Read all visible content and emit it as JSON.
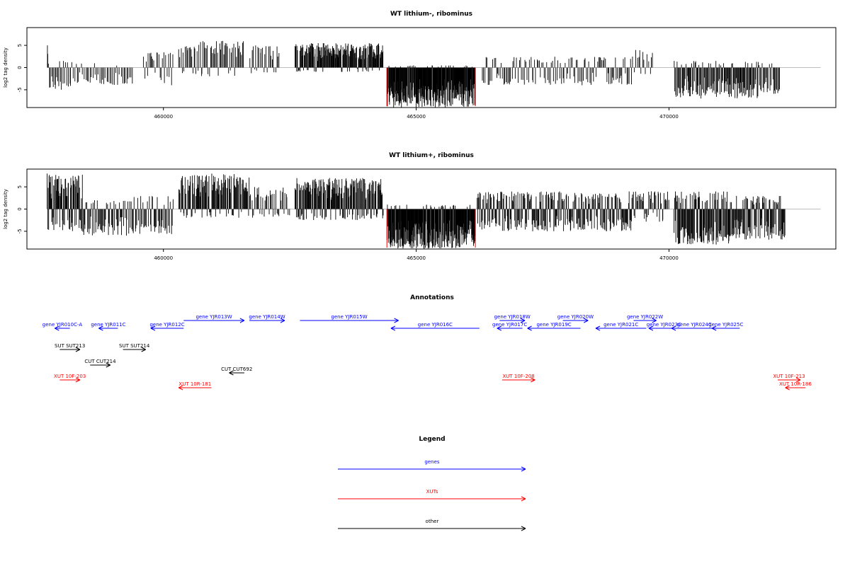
{
  "chart_data": [
    {
      "type": "bar",
      "title": "WT lithium-, ribominus",
      "ylabel": "log2 tag density",
      "xlabel": "",
      "xlim": [
        457300,
        473300
      ],
      "ylim": [
        -9,
        9
      ],
      "x_ticks": [
        460000,
        465000,
        470000
      ],
      "x_tick_labels": [
        "460000",
        "465000",
        "470000"
      ],
      "y_ticks": [
        -5,
        0,
        5
      ],
      "y_tick_labels": [
        "-5",
        "0",
        "5"
      ],
      "marker_lines_x": [
        464420,
        466170
      ],
      "segments": [
        {
          "x_start": 457700,
          "x_end": 457720,
          "pos_max": 5,
          "neg_max": -1,
          "density": 0.3
        },
        {
          "x_start": 457720,
          "x_end": 458200,
          "pos_max": 1.5,
          "neg_max": -5,
          "density": 0.35
        },
        {
          "x_start": 458200,
          "x_end": 459400,
          "pos_max": 1,
          "neg_max": -4,
          "density": 0.25
        },
        {
          "x_start": 459600,
          "x_end": 460200,
          "pos_max": 3.5,
          "neg_max": -4,
          "density": 0.3
        },
        {
          "x_start": 460300,
          "x_end": 461600,
          "pos_max": 6,
          "neg_max": -2,
          "density": 0.35
        },
        {
          "x_start": 461700,
          "x_end": 462300,
          "pos_max": 5,
          "neg_max": -1.5,
          "density": 0.3
        },
        {
          "x_start": 462600,
          "x_end": 464350,
          "pos_max": 5.5,
          "neg_max": -1,
          "density": 0.7
        },
        {
          "x_start": 464420,
          "x_end": 466170,
          "pos_max": 0.5,
          "neg_max": -9,
          "density": 1.0
        },
        {
          "x_start": 466300,
          "x_end": 469300,
          "pos_max": 2.5,
          "neg_max": -4,
          "density": 0.3
        },
        {
          "x_start": 469300,
          "x_end": 469700,
          "pos_max": 4,
          "neg_max": -1.5,
          "density": 0.25
        },
        {
          "x_start": 470100,
          "x_end": 471800,
          "pos_max": 1.5,
          "neg_max": -7,
          "density": 0.55
        },
        {
          "x_start": 471800,
          "x_end": 472200,
          "pos_max": 1,
          "neg_max": -6,
          "density": 0.4
        }
      ]
    },
    {
      "type": "bar",
      "title": "WT lithium+, ribominus",
      "ylabel": "log2 tag density",
      "xlabel": "",
      "xlim": [
        457300,
        473300
      ],
      "ylim": [
        -9,
        9
      ],
      "x_ticks": [
        460000,
        465000,
        470000
      ],
      "x_tick_labels": [
        "460000",
        "465000",
        "470000"
      ],
      "y_ticks": [
        -5,
        0,
        5
      ],
      "y_tick_labels": [
        "-5",
        "0",
        "5"
      ],
      "marker_lines_x": [
        464420,
        466170
      ],
      "segments": [
        {
          "x_start": 457700,
          "x_end": 458400,
          "pos_max": 8,
          "neg_max": -5,
          "density": 0.8
        },
        {
          "x_start": 458400,
          "x_end": 459400,
          "pos_max": 2,
          "neg_max": -6,
          "density": 0.45
        },
        {
          "x_start": 459400,
          "x_end": 460200,
          "pos_max": 3,
          "neg_max": -6,
          "density": 0.4
        },
        {
          "x_start": 460300,
          "x_end": 461700,
          "pos_max": 8,
          "neg_max": -2,
          "density": 0.6
        },
        {
          "x_start": 461700,
          "x_end": 462500,
          "pos_max": 5,
          "neg_max": -2,
          "density": 0.35
        },
        {
          "x_start": 462600,
          "x_end": 464350,
          "pos_max": 7,
          "neg_max": -2.5,
          "density": 0.75
        },
        {
          "x_start": 464420,
          "x_end": 466170,
          "pos_max": 1,
          "neg_max": -9,
          "density": 1.0
        },
        {
          "x_start": 466200,
          "x_end": 469300,
          "pos_max": 4,
          "neg_max": -5,
          "density": 0.6
        },
        {
          "x_start": 469300,
          "x_end": 470000,
          "pos_max": 4,
          "neg_max": -3,
          "density": 0.4
        },
        {
          "x_start": 470100,
          "x_end": 471200,
          "pos_max": 4,
          "neg_max": -8,
          "density": 0.8
        },
        {
          "x_start": 471200,
          "x_end": 472300,
          "pos_max": 3,
          "neg_max": -7,
          "density": 0.65
        }
      ]
    },
    {
      "type": "annotation-track",
      "title": "Annotations",
      "xlim": [
        457300,
        473300
      ],
      "features": [
        {
          "label": "gene YJR010C-A",
          "category": "genes",
          "strand": "-",
          "row": 1,
          "start": 457850,
          "end": 458150
        },
        {
          "label": "gene YJR011C",
          "category": "genes",
          "strand": "-",
          "row": 1,
          "start": 458720,
          "end": 459100
        },
        {
          "label": "gene YJR012C",
          "category": "genes",
          "strand": "-",
          "row": 1,
          "start": 459750,
          "end": 460400
        },
        {
          "label": "gene YJR013W",
          "category": "genes",
          "strand": "+",
          "row": 0,
          "start": 460400,
          "end": 461600
        },
        {
          "label": "gene YJR014W",
          "category": "genes",
          "strand": "+",
          "row": 0,
          "start": 461700,
          "end": 462400
        },
        {
          "label": "gene YJR015W",
          "category": "genes",
          "strand": "+",
          "row": 0,
          "start": 462700,
          "end": 464650
        },
        {
          "label": "gene YJR016C",
          "category": "genes",
          "strand": "-",
          "row": 1,
          "start": 464500,
          "end": 466250
        },
        {
          "label": "gene YJR017C",
          "category": "genes",
          "strand": "-",
          "row": 1,
          "start": 466600,
          "end": 467100
        },
        {
          "label": "gene YJR018W",
          "category": "genes",
          "strand": "+",
          "row": 0,
          "start": 466650,
          "end": 467150
        },
        {
          "label": "gene YJR019C",
          "category": "genes",
          "strand": "-",
          "row": 1,
          "start": 467200,
          "end": 468250
        },
        {
          "label": "gene YJR020W",
          "category": "genes",
          "strand": "+",
          "row": 0,
          "start": 467900,
          "end": 468400
        },
        {
          "label": "gene YJR021C",
          "category": "genes",
          "strand": "-",
          "row": 1,
          "start": 468550,
          "end": 469550
        },
        {
          "label": "gene YJR022W",
          "category": "genes",
          "strand": "+",
          "row": 0,
          "start": 469300,
          "end": 469750
        },
        {
          "label": "gene YJR023C",
          "category": "genes",
          "strand": "-",
          "row": 1,
          "start": 469600,
          "end": 470200
        },
        {
          "label": "gene YJR024C",
          "category": "genes",
          "strand": "-",
          "row": 1,
          "start": 470050,
          "end": 470950
        },
        {
          "label": "gene YJR025C",
          "category": "genes",
          "strand": "-",
          "row": 1,
          "start": 470850,
          "end": 471400
        },
        {
          "label": "SUT SUT213",
          "category": "other",
          "strand": "+",
          "row": 2,
          "start": 457950,
          "end": 458350
        },
        {
          "label": "SUT SUT214",
          "category": "other",
          "strand": "+",
          "row": 2,
          "start": 459200,
          "end": 459650
        },
        {
          "label": "CUT CUT214",
          "category": "other",
          "strand": "+",
          "row": 3,
          "start": 458550,
          "end": 458950
        },
        {
          "label": "CUT CUT692",
          "category": "other",
          "strand": "-",
          "row": 4,
          "start": 461300,
          "end": 461600
        },
        {
          "label": "XUT 10F-203",
          "category": "XUTs",
          "strand": "+",
          "row": 5,
          "start": 457950,
          "end": 458350
        },
        {
          "label": "XUT 10R-181",
          "category": "XUTs",
          "strand": "-",
          "row": 6,
          "start": 460300,
          "end": 460950
        },
        {
          "label": "XUT 10F-208",
          "category": "XUTs",
          "strand": "+",
          "row": 5,
          "start": 466700,
          "end": 467350
        },
        {
          "label": "XUT 10F-213",
          "category": "XUTs",
          "strand": "+",
          "row": 5,
          "start": 472150,
          "end": 472600
        },
        {
          "label": "XUT 10R-186",
          "category": "XUTs",
          "strand": "-",
          "row": 6,
          "start": 472300,
          "end": 472700
        }
      ]
    }
  ],
  "legend": {
    "title": "Legend",
    "items": [
      {
        "label": "genes",
        "category": "genes"
      },
      {
        "label": "XUTs",
        "category": "XUTs"
      },
      {
        "label": "other",
        "category": "other"
      }
    ]
  },
  "colors": {
    "genes": "#0000ff",
    "XUTs": "#ff0000",
    "other": "#000000",
    "marker": "#ff0000",
    "zero_line": "#bebebe",
    "bars": "#000000"
  }
}
